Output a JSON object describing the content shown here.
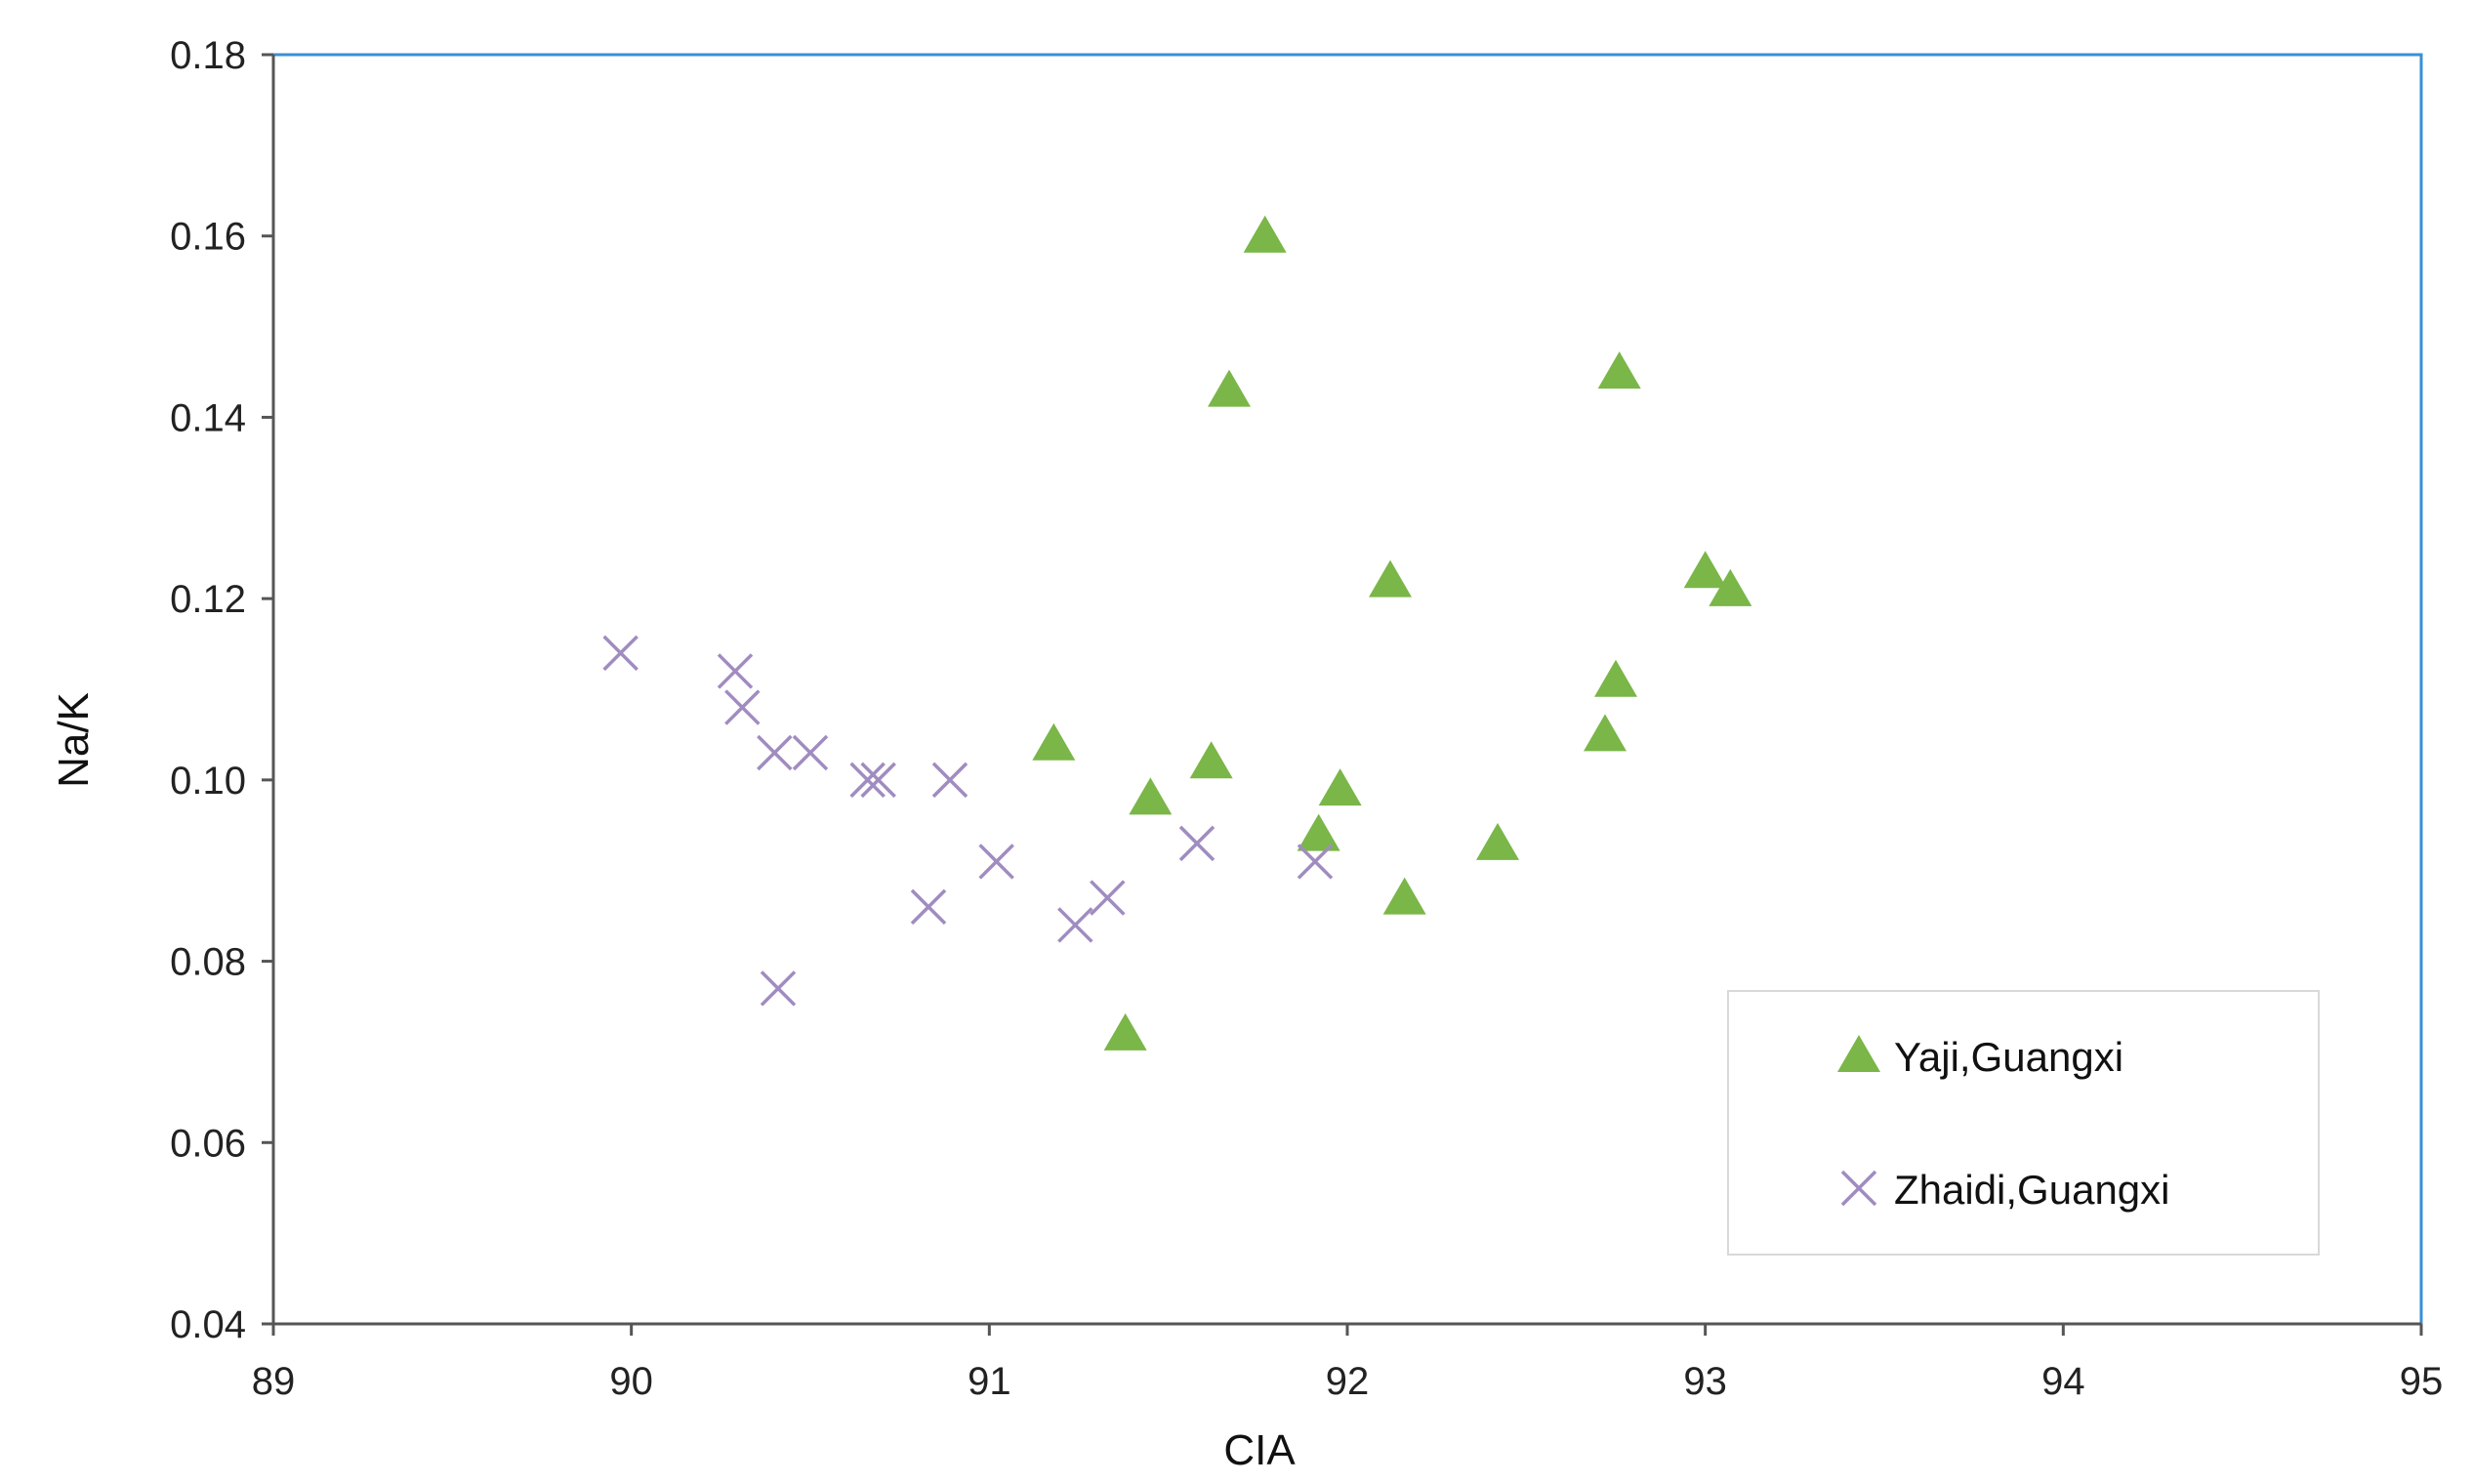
{
  "chart_data": {
    "type": "scatter",
    "title": "",
    "xlabel": "CIA",
    "ylabel": "Na/K",
    "xlim": [
      89,
      95
    ],
    "ylim": [
      0.04,
      0.18
    ],
    "x_ticks": [
      "89",
      "90",
      "91",
      "92",
      "93",
      "94",
      "95"
    ],
    "y_ticks": [
      "0.04",
      "0.06",
      "0.08",
      "0.10",
      "0.12",
      "0.14",
      "0.16",
      "0.18"
    ],
    "grid": false,
    "legend_position": "bottom-right",
    "series": [
      {
        "name": "Yaji,Guangxi",
        "marker": "triangle",
        "color": "#7ab648",
        "points": [
          {
            "x": 91.77,
            "y": 0.16
          },
          {
            "x": 91.67,
            "y": 0.143
          },
          {
            "x": 92.76,
            "y": 0.145
          },
          {
            "x": 92.12,
            "y": 0.122
          },
          {
            "x": 93.0,
            "y": 0.123
          },
          {
            "x": 93.07,
            "y": 0.121
          },
          {
            "x": 92.75,
            "y": 0.111
          },
          {
            "x": 92.72,
            "y": 0.105
          },
          {
            "x": 91.18,
            "y": 0.104
          },
          {
            "x": 91.62,
            "y": 0.102
          },
          {
            "x": 91.45,
            "y": 0.098
          },
          {
            "x": 91.98,
            "y": 0.099
          },
          {
            "x": 91.92,
            "y": 0.094
          },
          {
            "x": 92.42,
            "y": 0.093
          },
          {
            "x": 92.16,
            "y": 0.087
          },
          {
            "x": 91.38,
            "y": 0.072
          }
        ]
      },
      {
        "name": "Zhaidi,Guangxi",
        "marker": "x",
        "color": "#a08cc0",
        "points": [
          {
            "x": 89.97,
            "y": 0.114
          },
          {
            "x": 90.29,
            "y": 0.112
          },
          {
            "x": 90.31,
            "y": 0.108
          },
          {
            "x": 90.4,
            "y": 0.103
          },
          {
            "x": 90.5,
            "y": 0.103
          },
          {
            "x": 90.66,
            "y": 0.1
          },
          {
            "x": 90.69,
            "y": 0.1
          },
          {
            "x": 90.89,
            "y": 0.1
          },
          {
            "x": 91.02,
            "y": 0.091
          },
          {
            "x": 90.83,
            "y": 0.086
          },
          {
            "x": 91.24,
            "y": 0.084
          },
          {
            "x": 91.33,
            "y": 0.087
          },
          {
            "x": 91.58,
            "y": 0.093
          },
          {
            "x": 91.91,
            "y": 0.091
          },
          {
            "x": 90.41,
            "y": 0.077
          }
        ]
      }
    ]
  }
}
